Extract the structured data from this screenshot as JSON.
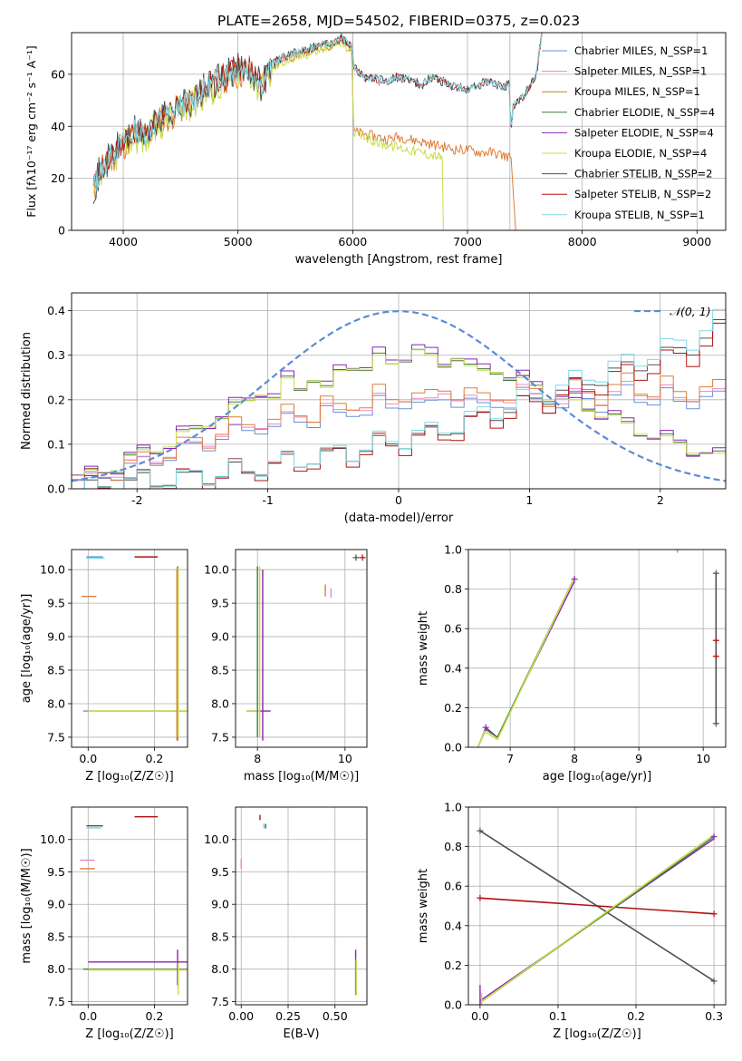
{
  "figure_title": "PLATE=2658, MJD=54502, FIBERID=0375, z=0.023",
  "colors": {
    "Chabrier MILES": "#6a8fd8",
    "Salpeter MILES": "#ee88c0",
    "Kroupa MILES": "#b8862a",
    "Chabrier ELODIE": "#3d7d3d",
    "Salpeter ELODIE": "#8b22b0",
    "Kroupa ELODIE": "#c7dc4a",
    "Chabrier STELIB": "#505050",
    "Salpeter STELIB": "#b01010",
    "Kroupa STELIB": "#80d8e4",
    "spectrum_orange": "#e07b39",
    "gaussian": "#5b8bd8",
    "grid": "#b0b0b0"
  },
  "chart_data": [
    {
      "id": "spectrum",
      "type": "line",
      "xlabel": "wavelength [Angstrom, rest frame]",
      "ylabel": "Flux [f$_\\lambda$10$^{-17}$ erg cm$^{-2}$ s$^{-1}$ A$^{-1}$]",
      "ylabel_display": "Flux [fλ10⁻¹⁷ erg cm⁻² s⁻¹ A⁻¹]",
      "xlim": [
        3550,
        9250
      ],
      "ylim": [
        0,
        76
      ],
      "xticks": [
        4000,
        5000,
        6000,
        7000,
        8000,
        9000
      ],
      "yticks": [
        0,
        20,
        40,
        60
      ],
      "grid": true,
      "legend_placement": "upper-right",
      "legend": [
        "Chabrier MILES, N_SSP=1",
        "Salpeter MILES, N_SSP=1",
        "Kroupa MILES, N_SSP=1",
        "Chabrier ELODIE, N_SSP=4",
        "Salpeter ELODIE, N_SSP=4",
        "Kroupa ELODIE, N_SSP=4",
        "Chabrier STELIB, N_SSP=2",
        "Salpeter STELIB, N_SSP=2",
        "Kroupa STELIB, N_SSP=1"
      ],
      "series": [
        {
          "key": "spec_a",
          "x": [
            3740,
            3800,
            3900,
            4000,
            4100,
            4200,
            4300,
            4400,
            4500,
            4600,
            4700,
            4800,
            4900,
            5000,
            5100,
            5200,
            5300,
            5400,
            5500,
            5600,
            5700,
            5800,
            5900,
            5990,
            6010,
            6100,
            6200,
            6300,
            6400,
            6500,
            6600,
            6700,
            6800,
            6900,
            7000,
            7100,
            7200,
            7300,
            7380,
            7420,
            7500,
            7560
          ],
          "y": [
            15,
            22,
            28,
            33,
            37,
            36,
            41,
            44,
            47,
            49,
            53,
            56,
            59,
            60,
            62,
            55,
            63,
            66,
            67,
            69,
            70,
            71,
            73,
            70,
            38,
            37,
            36,
            35,
            36,
            35,
            34,
            33,
            32,
            31,
            31,
            30,
            30,
            29,
            28,
            0,
            0,
            0
          ]
        },
        {
          "key": "spec_b",
          "x": [
            3740,
            3800,
            3900,
            4000,
            4100,
            4200,
            4300,
            4400,
            4500,
            4600,
            4700,
            4800,
            4900,
            5000,
            5100,
            5200,
            5300,
            5400,
            5500,
            5600,
            5700,
            5800,
            5900,
            5990,
            6010,
            6100,
            6200,
            6300,
            6400,
            6500,
            6600,
            6700,
            6780,
            6790
          ],
          "y": [
            12,
            20,
            27,
            33,
            36,
            35,
            40,
            44,
            46,
            49,
            52,
            55,
            58,
            60,
            61,
            54,
            62,
            65,
            66,
            68,
            69,
            71,
            72,
            69,
            37,
            36,
            34,
            33,
            32,
            31,
            30,
            29,
            28,
            0
          ]
        },
        {
          "key": "spec_c",
          "x": [
            3740,
            3800,
            3900,
            4000,
            4100,
            4200,
            4300,
            4400,
            4500,
            4600,
            4700,
            4800,
            4900,
            5000,
            5100,
            5200,
            5300,
            5400,
            5500,
            5600,
            5700,
            5800,
            5900,
            5990,
            6010,
            6100,
            6200,
            6300,
            6400,
            6500,
            6600,
            6700,
            6800,
            6900,
            7000,
            7100,
            7200,
            7300,
            7360,
            7380,
            7400,
            7500,
            7600,
            7650
          ],
          "y": [
            16,
            23,
            29,
            34,
            38,
            37,
            42,
            45,
            48,
            50,
            54,
            57,
            60,
            62,
            63,
            56,
            64,
            67,
            68,
            70,
            71,
            72,
            74,
            71,
            63,
            59,
            58,
            57,
            59,
            58,
            56,
            59,
            57,
            55,
            54,
            56,
            57,
            55,
            56,
            40,
            48,
            52,
            60,
            76
          ]
        }
      ]
    },
    {
      "id": "residuals",
      "type": "line",
      "xlabel": "(data-model)/error",
      "ylabel": "Normed distribution",
      "xlim": [
        -2.5,
        2.5
      ],
      "ylim": [
        0,
        0.44
      ],
      "xticks": [
        -2,
        -1,
        0,
        1,
        2
      ],
      "yticks": [
        0.0,
        0.1,
        0.2,
        0.3,
        0.4
      ],
      "grid": true,
      "legend_placement": "upper-right",
      "legend": [
        "$\\mathcal{N}(0,1)$"
      ],
      "legend_display": "𝒩(0, 1)",
      "bin_edges_range": [
        -2.5,
        2.5
      ],
      "n_bins": 50,
      "series": [
        {
          "key": "hist_elodie",
          "y": [
            0.03,
            0.03,
            0.04,
            0.05,
            0.07,
            0.08,
            0.09,
            0.1,
            0.12,
            0.13,
            0.15,
            0.16,
            0.18,
            0.2,
            0.22,
            0.2,
            0.24,
            0.23,
            0.25,
            0.22,
            0.26,
            0.28,
            0.27,
            0.29,
            0.28,
            0.3,
            0.31,
            0.29,
            0.28,
            0.3,
            0.27,
            0.26,
            0.27,
            0.25,
            0.24,
            0.23,
            0.21,
            0.2,
            0.19,
            0.18,
            0.17,
            0.16,
            0.14,
            0.13,
            0.12,
            0.11,
            0.1,
            0.09,
            0.08,
            0.07
          ]
        },
        {
          "key": "hist_miles",
          "y": [
            0.02,
            0.02,
            0.03,
            0.04,
            0.05,
            0.06,
            0.07,
            0.08,
            0.09,
            0.1,
            0.11,
            0.12,
            0.13,
            0.14,
            0.15,
            0.14,
            0.16,
            0.17,
            0.16,
            0.18,
            0.17,
            0.19,
            0.18,
            0.2,
            0.19,
            0.21,
            0.2,
            0.19,
            0.22,
            0.21,
            0.2,
            0.19,
            0.21,
            0.2,
            0.22,
            0.21,
            0.2,
            0.19,
            0.21,
            0.22,
            0.2,
            0.21,
            0.23,
            0.22,
            0.21,
            0.22,
            0.2,
            0.21,
            0.22,
            0.21
          ]
        },
        {
          "key": "hist_stelib",
          "y": [
            0.0,
            0.0,
            0.01,
            0.01,
            0.01,
            0.02,
            0.02,
            0.02,
            0.02,
            0.03,
            0.03,
            0.03,
            0.04,
            0.04,
            0.05,
            0.05,
            0.06,
            0.06,
            0.07,
            0.07,
            0.08,
            0.08,
            0.09,
            0.1,
            0.1,
            0.11,
            0.12,
            0.12,
            0.13,
            0.14,
            0.15,
            0.16,
            0.17,
            0.18,
            0.19,
            0.2,
            0.21,
            0.22,
            0.23,
            0.24,
            0.25,
            0.26,
            0.27,
            0.28,
            0.29,
            0.3,
            0.31,
            0.32,
            0.34,
            0.36
          ]
        }
      ]
    },
    {
      "id": "age_vs_Z",
      "type": "scatter",
      "xlabel": "Z [log$_{10}$(Z/Z$_\\odot$)]",
      "xlabel_display": "Z [log₁₀(Z/Z☉)]",
      "ylabel": "age  [log$_{10}$(age/yr)]",
      "ylabel_display": "age  [log₁₀(age/yr)]",
      "xlim": [
        -0.05,
        0.3
      ],
      "ylim": [
        7.35,
        10.3
      ],
      "xticks": [
        0.0,
        0.2
      ],
      "yticks": [
        7.5,
        8.0,
        8.5,
        9.0,
        9.5,
        10.0
      ],
      "grid": true
    },
    {
      "id": "age_vs_mass",
      "type": "scatter",
      "xlabel": "mass [log$_{10}$(M/M$_\\odot$)]",
      "xlabel_display": "mass [log₁₀(M/M☉)]",
      "xlim": [
        7.5,
        10.5
      ],
      "ylim": [
        7.35,
        10.3
      ],
      "xticks": [
        8,
        10
      ],
      "yticks": [
        7.5,
        8.0,
        8.5,
        9.0,
        9.5,
        10.0
      ],
      "grid": true
    },
    {
      "id": "massweight_vs_age",
      "type": "line",
      "xlabel": "age  [log$_{10}$(age/yr)]",
      "xlabel_display": "age  [log₁₀(age/yr)]",
      "ylabel": "mass weight",
      "xlim": [
        6.35,
        10.35
      ],
      "ylim": [
        0.0,
        1.0
      ],
      "xticks": [
        7,
        8,
        9,
        10
      ],
      "yticks": [
        0.0,
        0.2,
        0.4,
        0.6,
        0.8,
        1.0
      ],
      "grid": true
    },
    {
      "id": "mass_vs_Z",
      "type": "scatter",
      "xlabel": "Z [log$_{10}$(Z/Z$_\\odot$)]",
      "xlabel_display": "Z [log₁₀(Z/Z☉)]",
      "ylabel": "mass [log$_{10}$(M/M$_\\odot$)]",
      "ylabel_display": "mass [log₁₀(M/M☉)]",
      "xlim": [
        -0.05,
        0.3
      ],
      "ylim": [
        7.45,
        10.5
      ],
      "xticks": [
        0.0,
        0.2
      ],
      "yticks": [
        7.5,
        8.0,
        8.5,
        9.0,
        9.5,
        10.0
      ],
      "grid": true
    },
    {
      "id": "mass_vs_EBV",
      "type": "scatter",
      "xlabel": "E(B-V)",
      "xlim": [
        -0.03,
        0.67
      ],
      "ylim": [
        7.45,
        10.5
      ],
      "xticks": [
        0.0,
        0.25,
        0.5
      ],
      "yticks": [
        7.5,
        8.0,
        8.5,
        9.0,
        9.5,
        10.0
      ],
      "grid": true
    },
    {
      "id": "massweight_vs_Z",
      "type": "line",
      "xlabel": "Z [log$_{10}$(Z/Z$_\\odot$)]",
      "xlabel_display": "Z [log₁₀(Z/Z☉)]",
      "ylabel": "mass weight",
      "xlim": [
        -0.015,
        0.315
      ],
      "ylim": [
        0.0,
        1.0
      ],
      "xticks": [
        0.0,
        0.1,
        0.2,
        0.3
      ],
      "yticks": [
        0.0,
        0.2,
        0.4,
        0.6,
        0.8,
        1.0
      ],
      "grid": true,
      "series": [
        {
          "name": "",
          "key": "stelib_chabrier",
          "x": [
            0.0,
            0.3
          ],
          "y": [
            0.88,
            0.12
          ]
        },
        {
          "name": "",
          "key": "stelib_salpeter",
          "x": [
            0.0,
            0.3
          ],
          "y": [
            0.54,
            0.46
          ]
        },
        {
          "name": "",
          "key": "elodie",
          "x": [
            0.0,
            0.3
          ],
          "y": [
            0.01,
            0.86
          ]
        }
      ]
    }
  ]
}
